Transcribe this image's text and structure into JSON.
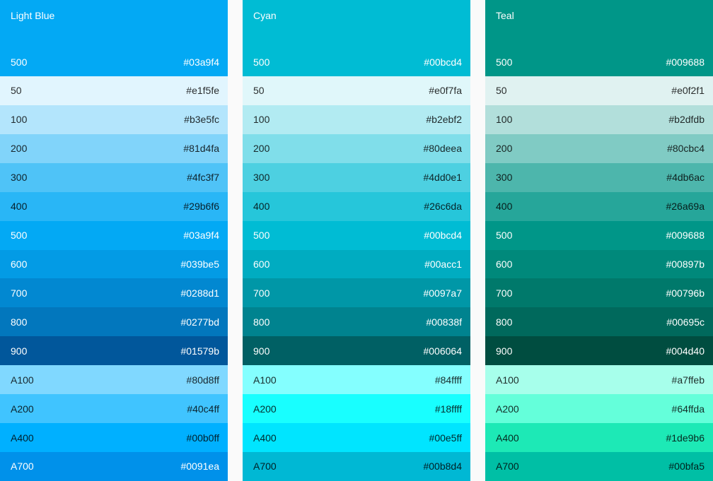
{
  "colors": {
    "page_background": "#fafafa",
    "text_light": "#ffffff",
    "text_dark": "rgba(0,0,0,0.82)"
  },
  "palette": {
    "columns": [
      {
        "name": "Light Blue",
        "header": {
          "label": "500",
          "hex": "#03a9f4",
          "contrast": "light"
        },
        "rows": [
          {
            "label": "50",
            "hex": "#e1f5fe",
            "contrast": "dark"
          },
          {
            "label": "100",
            "hex": "#b3e5fc",
            "contrast": "dark"
          },
          {
            "label": "200",
            "hex": "#81d4fa",
            "contrast": "dark"
          },
          {
            "label": "300",
            "hex": "#4fc3f7",
            "contrast": "dark"
          },
          {
            "label": "400",
            "hex": "#29b6f6",
            "contrast": "dark"
          },
          {
            "label": "500",
            "hex": "#03a9f4",
            "contrast": "light"
          },
          {
            "label": "600",
            "hex": "#039be5",
            "contrast": "light"
          },
          {
            "label": "700",
            "hex": "#0288d1",
            "contrast": "light"
          },
          {
            "label": "800",
            "hex": "#0277bd",
            "contrast": "light"
          },
          {
            "label": "900",
            "hex": "#01579b",
            "contrast": "light"
          },
          {
            "label": "A100",
            "hex": "#80d8ff",
            "contrast": "dark"
          },
          {
            "label": "A200",
            "hex": "#40c4ff",
            "contrast": "dark"
          },
          {
            "label": "A400",
            "hex": "#00b0ff",
            "contrast": "dark"
          },
          {
            "label": "A700",
            "hex": "#0091ea",
            "contrast": "light"
          }
        ]
      },
      {
        "name": "Cyan",
        "header": {
          "label": "500",
          "hex": "#00bcd4",
          "contrast": "light"
        },
        "rows": [
          {
            "label": "50",
            "hex": "#e0f7fa",
            "contrast": "dark"
          },
          {
            "label": "100",
            "hex": "#b2ebf2",
            "contrast": "dark"
          },
          {
            "label": "200",
            "hex": "#80deea",
            "contrast": "dark"
          },
          {
            "label": "300",
            "hex": "#4dd0e1",
            "contrast": "dark"
          },
          {
            "label": "400",
            "hex": "#26c6da",
            "contrast": "dark"
          },
          {
            "label": "500",
            "hex": "#00bcd4",
            "contrast": "light"
          },
          {
            "label": "600",
            "hex": "#00acc1",
            "contrast": "light"
          },
          {
            "label": "700",
            "hex": "#0097a7",
            "contrast": "light"
          },
          {
            "label": "800",
            "hex": "#00838f",
            "contrast": "light"
          },
          {
            "label": "900",
            "hex": "#006064",
            "contrast": "light"
          },
          {
            "label": "A100",
            "hex": "#84ffff",
            "contrast": "dark"
          },
          {
            "label": "A200",
            "hex": "#18ffff",
            "contrast": "dark"
          },
          {
            "label": "A400",
            "hex": "#00e5ff",
            "contrast": "dark"
          },
          {
            "label": "A700",
            "hex": "#00b8d4",
            "contrast": "dark"
          }
        ]
      },
      {
        "name": "Teal",
        "header": {
          "label": "500",
          "hex": "#009688",
          "contrast": "light"
        },
        "rows": [
          {
            "label": "50",
            "hex": "#e0f2f1",
            "contrast": "dark"
          },
          {
            "label": "100",
            "hex": "#b2dfdb",
            "contrast": "dark"
          },
          {
            "label": "200",
            "hex": "#80cbc4",
            "contrast": "dark"
          },
          {
            "label": "300",
            "hex": "#4db6ac",
            "contrast": "dark"
          },
          {
            "label": "400",
            "hex": "#26a69a",
            "contrast": "dark"
          },
          {
            "label": "500",
            "hex": "#009688",
            "contrast": "light"
          },
          {
            "label": "600",
            "hex": "#00897b",
            "contrast": "light"
          },
          {
            "label": "700",
            "hex": "#00796b",
            "contrast": "light"
          },
          {
            "label": "800",
            "hex": "#00695c",
            "contrast": "light"
          },
          {
            "label": "900",
            "hex": "#004d40",
            "contrast": "light"
          },
          {
            "label": "A100",
            "hex": "#a7ffeb",
            "contrast": "dark"
          },
          {
            "label": "A200",
            "hex": "#64ffda",
            "contrast": "dark"
          },
          {
            "label": "A400",
            "hex": "#1de9b6",
            "contrast": "dark"
          },
          {
            "label": "A700",
            "hex": "#00bfa5",
            "contrast": "dark"
          }
        ]
      }
    ]
  }
}
